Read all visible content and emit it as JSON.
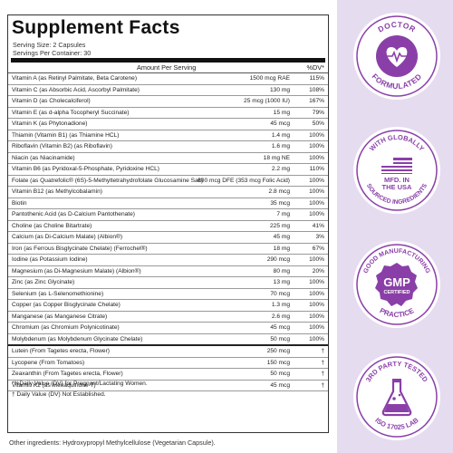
{
  "label": {
    "title": "Supplement Facts",
    "serving_size": "Serving Size: 2 Capsules",
    "servings_per_container": "Servings Per Container: 30",
    "header_amount": "Amount Per Serving",
    "header_dv": "%DV*",
    "rows": [
      {
        "name": "Vitamin A (as Retinyl Palmitate, Beta Carotene)",
        "amount": "1500 mcg RAE",
        "dv": "115%"
      },
      {
        "name": "Vitamin C (as Absorbic Acid, Ascorbyl Palmitate)",
        "amount": "130 mg",
        "dv": "108%"
      },
      {
        "name": "Vitamin D (as Cholecalciferol)",
        "amount": "25 mcg (1000 IU)",
        "dv": "167%"
      },
      {
        "name": "Vitamin E (as d-alpha Tocopheryl Succinate)",
        "amount": "15 mg",
        "dv": "79%"
      },
      {
        "name": "Vitamin K (as Phytonadione)",
        "amount": "45 mcg",
        "dv": "50%"
      },
      {
        "name": "Thiamin (Vitamin B1) (as Thiamine HCL)",
        "amount": "1.4 mg",
        "dv": "100%"
      },
      {
        "name": "Riboflavin (Vitamin B2) (as Riboflavin)",
        "amount": "1.6 mg",
        "dv": "100%"
      },
      {
        "name": "Niacin (as Niacinamide)",
        "amount": "18 mg NE",
        "dv": "100%"
      },
      {
        "name": "Vitamin B6 (as Pyridoxal-5-Phosphate, Pyridoxine HCL)",
        "amount": "2.2 mg",
        "dv": "110%"
      },
      {
        "name": "Folate (as Quatrefolic® (6S)-5-Methyltetrahydrofolate Glucosamine Salt)",
        "amount": "600 mcg DFE (353 mcg Folic Acid)",
        "dv": "100%"
      },
      {
        "name": "Vitamin B12 (as Methylcobalamin)",
        "amount": "2.8 mcg",
        "dv": "100%"
      },
      {
        "name": "Biotin",
        "amount": "35 mcg",
        "dv": "100%"
      },
      {
        "name": "Pantothenic Acid (as D-Calcium Pantothenate)",
        "amount": "7 mg",
        "dv": "100%"
      },
      {
        "name": "Choline (as Choline Bitartrate)",
        "amount": "225 mg",
        "dv": "41%"
      },
      {
        "name": "Calcium (as Di-Calcium Malate) (Albion®)",
        "amount": "45 mg",
        "dv": "3%"
      },
      {
        "name": "Iron (as Ferrous Bisglycinate Chelate) (Ferrochel®)",
        "amount": "18 mg",
        "dv": "67%"
      },
      {
        "name": "Iodine (as Potassium Iodine)",
        "amount": "290 mcg",
        "dv": "100%"
      },
      {
        "name": "Magnesium (as Di-Magnesium Malate) (Albion®)",
        "amount": "80 mg",
        "dv": "20%"
      },
      {
        "name": "Zinc (as Zinc Glycinate)",
        "amount": "13 mg",
        "dv": "100%"
      },
      {
        "name": "Selenium (as L-Selenomethionine)",
        "amount": "70 mcg",
        "dv": "100%"
      },
      {
        "name": "Copper (as Copper Bisglycinate Chelate)",
        "amount": "1.3 mg",
        "dv": "100%"
      },
      {
        "name": "Manganese (as Manganese Citrate)",
        "amount": "2.6 mg",
        "dv": "100%"
      },
      {
        "name": "Chromium (as Chromium Polynicotinate)",
        "amount": "45 mcg",
        "dv": "100%"
      },
      {
        "name": "Molybdenum (as Molybdenum Glycinate Chelate)",
        "amount": "50 mcg",
        "dv": "100%"
      },
      {
        "name": "Lutein (From Tagetes erecta, Flower)",
        "amount": "250 mcg",
        "dv": "†"
      },
      {
        "name": "Lycopene (From Tomatoes)",
        "amount": "150 mcg",
        "dv": "†"
      },
      {
        "name": "Zeaxanthin (From Tagetes erecta, Flower)",
        "amount": "50 mcg",
        "dv": "†"
      },
      {
        "name": "Vitamin K2 (as Menaquinone-7)",
        "amount": "45 mcg",
        "dv": "†"
      }
    ],
    "footnote_1": "*%Daily Value (DV) for Pregnant/Lactating Women.",
    "footnote_2": "† Daily Value (DV) Not Established.",
    "other_ingredients": "Other ingredients: Hydroxypropyl Methylcellulose (Vegetarian Capsule)."
  },
  "badges": {
    "doctor_top": "DOCTOR",
    "doctor_bottom": "FORMULATED",
    "globally_top": "WITH GLOBALLY",
    "globally_bottom": "SOURCED INGREDIENTS",
    "mfd_line1": "MFD. IN",
    "mfd_line2": "THE USA",
    "gmp_top": "GOOD MANUFACTURING",
    "gmp_bottom": "PRACTICE",
    "gmp_big": "GMP",
    "gmp_small": "CERTIFIED",
    "lab_top": "3RD PARTY TESTED",
    "lab_bottom": "ISO 17025 LAB"
  },
  "colors": {
    "purple": "#8a3fa8",
    "badge_bg": "#ffffff",
    "sidebar_bg": "#e6dcf0"
  }
}
